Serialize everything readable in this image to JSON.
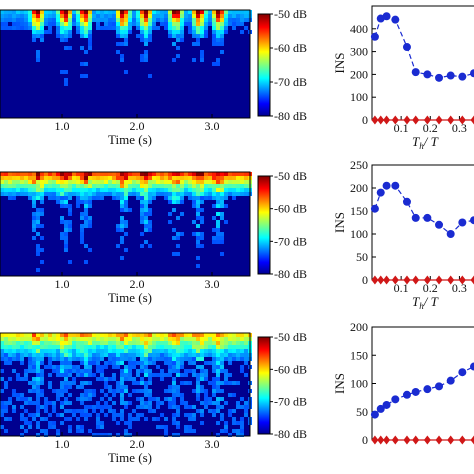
{
  "chart_data": [
    {
      "type": "heatmap",
      "panel": "spectrogram-1",
      "xlabel": "Time (s)",
      "x_ticks": [
        "1.0",
        "2.0",
        "3.0"
      ],
      "xlim": [
        0.0,
        3.5
      ],
      "colorbar": {
        "ticks": [
          "-50 dB",
          "-60 dB",
          "-70 dB",
          "-80 dB"
        ],
        "range": [
          -80,
          -50
        ],
        "colormap": "jet"
      }
    },
    {
      "type": "line",
      "panel": "ins-1",
      "xlabel_main": "T",
      "xlabel_sub": "h",
      "xlabel_den": "/ T",
      "ylabel": "INS",
      "x_ticks": [
        "0.1",
        "0.2",
        "0.3"
      ],
      "y_ticks": [
        "0",
        "100",
        "200",
        "300",
        "400"
      ],
      "ylim": [
        0,
        500
      ],
      "xlim": [
        0,
        0.35
      ],
      "series": [
        {
          "style": "dashed-circle",
          "color": "#1a2bd1",
          "x": [
            0.01,
            0.03,
            0.05,
            0.08,
            0.12,
            0.15,
            0.19,
            0.23,
            0.27,
            0.31,
            0.35
          ],
          "y": [
            365,
            445,
            455,
            440,
            320,
            210,
            200,
            185,
            195,
            190,
            205
          ]
        },
        {
          "style": "solid-diamond",
          "color": "#d01818",
          "x": [
            0.01,
            0.03,
            0.05,
            0.08,
            0.12,
            0.15,
            0.19,
            0.23,
            0.27,
            0.31,
            0.35
          ],
          "y": [
            0,
            0,
            0,
            0,
            0,
            0,
            0,
            0,
            0,
            0,
            0
          ]
        }
      ]
    },
    {
      "type": "heatmap",
      "panel": "spectrogram-2",
      "xlabel": "Time (s)",
      "x_ticks": [
        "1.0",
        "2.0",
        "3.0"
      ],
      "xlim": [
        0.0,
        3.5
      ],
      "colorbar": {
        "ticks": [
          "-50 dB",
          "-60 dB",
          "-70 dB",
          "-80 dB"
        ],
        "range": [
          -80,
          -50
        ],
        "colormap": "jet"
      }
    },
    {
      "type": "line",
      "panel": "ins-2",
      "xlabel_main": "T",
      "xlabel_sub": "h",
      "xlabel_den": "/ T",
      "ylabel": "INS",
      "x_ticks": [
        "0.1",
        "0.2",
        "0.3"
      ],
      "y_ticks": [
        "0",
        "50",
        "100",
        "150",
        "200",
        "250"
      ],
      "ylim": [
        0,
        250
      ],
      "xlim": [
        0,
        0.35
      ],
      "series": [
        {
          "style": "dashed-circle",
          "color": "#1a2bd1",
          "x": [
            0.01,
            0.03,
            0.05,
            0.08,
            0.12,
            0.15,
            0.19,
            0.23,
            0.27,
            0.31,
            0.35
          ],
          "y": [
            155,
            190,
            205,
            205,
            170,
            135,
            135,
            120,
            100,
            125,
            130
          ]
        },
        {
          "style": "solid-diamond",
          "color": "#d01818",
          "x": [
            0.01,
            0.03,
            0.05,
            0.08,
            0.12,
            0.15,
            0.19,
            0.23,
            0.27,
            0.31,
            0.35
          ],
          "y": [
            0,
            0,
            0,
            0,
            0,
            0,
            0,
            0,
            0,
            0,
            0
          ]
        }
      ]
    },
    {
      "type": "heatmap",
      "panel": "spectrogram-3",
      "xlabel": "Time (s)",
      "x_ticks": [
        "1.0",
        "2.0",
        "3.0"
      ],
      "xlim": [
        0.0,
        3.5
      ],
      "colorbar": {
        "ticks": [
          "-50 dB",
          "-60 dB",
          "-70 dB",
          "-80 dB"
        ],
        "range": [
          -80,
          -50
        ],
        "colormap": "jet"
      }
    },
    {
      "type": "line",
      "panel": "ins-3",
      "ylabel": "INS",
      "x_ticks": [],
      "y_ticks": [
        "0",
        "50",
        "100",
        "150",
        "200"
      ],
      "ylim": [
        0,
        200
      ],
      "xlim": [
        0,
        0.35
      ],
      "series": [
        {
          "style": "dashed-circle",
          "color": "#1a2bd1",
          "x": [
            0.01,
            0.03,
            0.05,
            0.08,
            0.12,
            0.15,
            0.19,
            0.23,
            0.27,
            0.31,
            0.35
          ],
          "y": [
            45,
            55,
            62,
            72,
            80,
            85,
            90,
            95,
            105,
            120,
            130
          ]
        },
        {
          "style": "solid-diamond",
          "color": "#d01818",
          "x": [
            0.01,
            0.03,
            0.05,
            0.08,
            0.12,
            0.15,
            0.19,
            0.23,
            0.27,
            0.31,
            0.35
          ],
          "y": [
            0,
            0,
            0,
            0,
            0,
            0,
            0,
            0,
            0,
            0,
            0
          ]
        }
      ]
    }
  ]
}
